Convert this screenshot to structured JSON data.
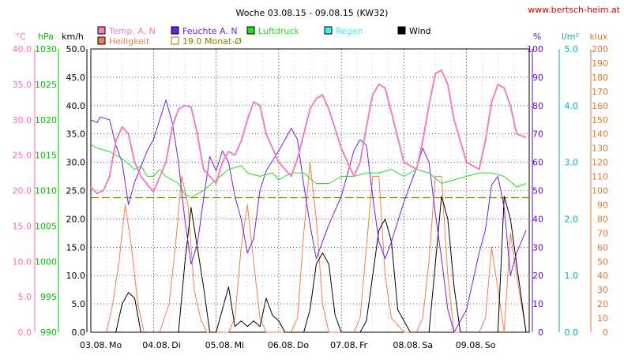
{
  "chart_data": {
    "type": "line",
    "title": "Woche 03.08.15 - 09.08.15 (KW32)",
    "site": "www.bertsch-heim.at",
    "x_ticks": [
      "03.08.",
      "04.08.",
      "05.08.",
      "06.08.",
      "07.08.",
      "08.08.",
      "09.08."
    ],
    "x_weekdays": [
      "Mo",
      "Di",
      "Mi",
      "Do",
      "Fr",
      "Sa",
      "So"
    ],
    "x_range_days": [
      0,
      7
    ],
    "grid": true,
    "axes": [
      {
        "unit": "°C",
        "min": 0,
        "max": 40,
        "ticks": [
          "0.0",
          "5.0",
          "10.0",
          "15.0",
          "20.0",
          "25.0",
          "30.0",
          "35.0",
          "40.0"
        ],
        "color": "#ff69b4"
      },
      {
        "unit": "hPa",
        "min": 990,
        "max": 1030,
        "ticks": [
          "990",
          "995",
          "1000",
          "1005",
          "1010",
          "1015",
          "1020",
          "1025",
          "1030"
        ],
        "color": "#00c000"
      },
      {
        "unit": "km/h",
        "min": 0,
        "max": 50,
        "ticks": [
          "0.0",
          "5.0",
          "10.0",
          "15.0",
          "20.0",
          "25.0",
          "30.0",
          "35.0",
          "40.0",
          "45.0",
          "50.0"
        ],
        "color": "#000000"
      },
      {
        "unit": "%",
        "min": 0,
        "max": 100,
        "ticks": [
          "0",
          "10",
          "20",
          "30",
          "40",
          "50",
          "60",
          "70",
          "80",
          "90",
          "100"
        ],
        "color": "#6a0dad"
      },
      {
        "unit": "l/m²",
        "min": 0,
        "max": 5,
        "ticks": [
          "0.0",
          "1.0",
          "2.0",
          "3.0",
          "4.0",
          "5.0"
        ],
        "color": "#00b0c0"
      },
      {
        "unit": "klux",
        "min": 0,
        "max": 200,
        "ticks": [
          "0",
          "10",
          "20",
          "30",
          "40",
          "50",
          "60",
          "70",
          "80",
          "90",
          "100",
          "110",
          "120",
          "130",
          "140",
          "150",
          "160",
          "170",
          "180",
          "190",
          "200"
        ],
        "color": "#e07830"
      }
    ],
    "legend": [
      {
        "label": "Temp. A. N",
        "color": "#f080c0",
        "kind": "fill"
      },
      {
        "label": "Feuchte A. N",
        "color": "#7020e0",
        "kind": "fill"
      },
      {
        "label": "Luftdruck",
        "color": "#20e020",
        "kind": "fill"
      },
      {
        "label": "Regen",
        "color": "#40f0f0",
        "kind": "fill"
      },
      {
        "label": "Wind",
        "color": "#000000",
        "kind": "fill"
      },
      {
        "label": "Helligkeit",
        "color": "#f08050",
        "kind": "fill"
      },
      {
        "label": "19.0 Monat-Ø",
        "color": "#808000",
        "kind": "outline"
      }
    ],
    "reference_line": {
      "label": "19.0 Monat-Ø",
      "axis": "°C",
      "value": 19.0,
      "color": "#808000"
    },
    "series": [
      {
        "name": "Temp. A. N",
        "axis": "°C",
        "color": "#f080c0",
        "width": 2,
        "x": [
          0,
          0.1,
          0.2,
          0.3,
          0.4,
          0.5,
          0.6,
          0.7,
          0.8,
          1.0,
          1.2,
          1.3,
          1.4,
          1.5,
          1.6,
          1.7,
          1.8,
          2.0,
          2.1,
          2.2,
          2.3,
          2.4,
          2.5,
          2.6,
          2.7,
          2.8,
          3.0,
          3.2,
          3.3,
          3.4,
          3.5,
          3.6,
          3.7,
          3.8,
          4.0,
          4.2,
          4.3,
          4.4,
          4.5,
          4.6,
          4.7,
          4.8,
          5.0,
          5.2,
          5.3,
          5.4,
          5.5,
          5.6,
          5.7,
          5.8,
          6.0,
          6.2,
          6.3,
          6.4,
          6.5,
          6.6,
          6.7,
          6.8,
          6.95
        ],
        "y": [
          20.5,
          19.6,
          20,
          22,
          27,
          29,
          28,
          24,
          22,
          19.8,
          24,
          29,
          31.5,
          32,
          31.8,
          28,
          23,
          21,
          24,
          25.5,
          25,
          27,
          30,
          32.5,
          32,
          28,
          24,
          22,
          24.5,
          28,
          31.5,
          33,
          33.5,
          31.5,
          26,
          22,
          24,
          29,
          33.5,
          35,
          34.5,
          31,
          24,
          23,
          27,
          32,
          36.5,
          37,
          35,
          30,
          24,
          23,
          27,
          32.5,
          35,
          34.5,
          32,
          28,
          27.5
        ]
      },
      {
        "name": "Luftdruck",
        "axis": "hPa",
        "color": "#20e020",
        "width": 1,
        "x": [
          0,
          0.1,
          0.3,
          0.4,
          0.5,
          0.7,
          0.8,
          0.9,
          1.0,
          1.1,
          1.2,
          1.4,
          1.5,
          1.6,
          1.8,
          2.0,
          2.2,
          2.4,
          2.5,
          2.7,
          2.9,
          3.0,
          3.2,
          3.4,
          3.6,
          3.8,
          4.0,
          4.2,
          4.4,
          4.6,
          4.8,
          5.0,
          5.2,
          5.4,
          5.6,
          5.8,
          6.0,
          6.2,
          6.4,
          6.6,
          6.8,
          6.95
        ],
        "y": [
          1016.5,
          1016,
          1015.5,
          1015,
          1014.5,
          1013,
          1013.5,
          1012,
          1012,
          1013,
          1012,
          1011,
          1009.5,
          1009,
          1010,
          1011.5,
          1013,
          1013.5,
          1012.5,
          1012,
          1012.5,
          1011.5,
          1012.5,
          1012.5,
          1011,
          1011,
          1012,
          1012,
          1012.5,
          1012.5,
          1013,
          1012,
          1013,
          1012.5,
          1011,
          1011.5,
          1012,
          1012.5,
          1012.5,
          1012,
          1010.5,
          1011
        ]
      },
      {
        "name": "Feuchte A. N",
        "axis": "%",
        "color": "#7020e0",
        "width": 1,
        "x": [
          0,
          0.1,
          0.15,
          0.3,
          0.4,
          0.5,
          0.6,
          0.7,
          0.9,
          1.0,
          1.2,
          1.3,
          1.4,
          1.5,
          1.6,
          1.7,
          1.8,
          1.9,
          2.0,
          2.1,
          2.2,
          2.3,
          2.4,
          2.5,
          2.6,
          2.7,
          2.8,
          3.0,
          3.2,
          3.3,
          3.4,
          3.5,
          3.6,
          3.7,
          3.8,
          4.0,
          4.2,
          4.3,
          4.4,
          4.5,
          4.6,
          4.7,
          4.8,
          5.0,
          5.2,
          5.3,
          5.4,
          5.5,
          5.6,
          5.7,
          5.8,
          6.0,
          6.2,
          6.3,
          6.4,
          6.5,
          6.6,
          6.7,
          6.8,
          6.95
        ],
        "y": [
          75,
          74,
          76,
          75,
          66,
          60,
          45,
          53,
          64,
          68,
          82,
          74,
          60,
          40,
          24,
          31,
          47,
          62,
          57,
          64,
          60,
          48,
          40,
          28,
          33,
          50,
          57,
          64,
          72,
          68,
          52,
          38,
          26,
          32,
          38,
          48,
          64,
          68,
          66,
          48,
          32,
          26,
          32,
          46,
          58,
          65,
          60,
          42,
          26,
          8,
          0,
          8,
          28,
          36,
          52,
          55,
          44,
          20,
          28,
          36
        ]
      },
      {
        "name": "Wind",
        "axis": "km/h",
        "color": "#000000",
        "width": 1,
        "x": [
          0,
          0.4,
          0.5,
          0.6,
          0.7,
          0.8,
          0.9,
          1.0,
          1.1,
          1.2,
          1.3,
          1.4,
          1.5,
          1.6,
          1.7,
          1.8,
          1.9,
          2.0,
          2.1,
          2.2,
          2.3,
          2.4,
          2.5,
          2.6,
          2.7,
          2.8,
          2.9,
          3.0,
          3.1,
          3.2,
          3.3,
          3.4,
          3.5,
          3.6,
          3.7,
          3.8,
          3.9,
          4.0,
          4.1,
          4.2,
          4.3,
          4.4,
          4.5,
          4.6,
          4.7,
          4.8,
          4.9,
          5.0,
          5.1,
          5.2,
          5.3,
          5.4,
          5.5,
          5.6,
          5.7,
          5.8,
          5.9,
          6.0,
          6.1,
          6.2,
          6.3,
          6.4,
          6.5,
          6.6,
          6.7,
          6.8,
          6.95
        ],
        "y": [
          0,
          0,
          5,
          7,
          6,
          0,
          0,
          0,
          0,
          0,
          0,
          0,
          12,
          22,
          15,
          8,
          0,
          0,
          4,
          8,
          1,
          2,
          1,
          2,
          1,
          6,
          3,
          2,
          0,
          0,
          0,
          0,
          4,
          12,
          14,
          12,
          3,
          0,
          0,
          0,
          0,
          2,
          10,
          18,
          20,
          16,
          4,
          2,
          0,
          0,
          0,
          0,
          12,
          24,
          20,
          8,
          0,
          0,
          0,
          0,
          0,
          0,
          0,
          24,
          20,
          12,
          0
        ]
      },
      {
        "name": "Helligkeit",
        "axis": "klux",
        "color": "#f08050",
        "width": 1,
        "x": [
          0,
          0.25,
          0.35,
          0.45,
          0.55,
          0.65,
          0.75,
          0.85,
          1.0,
          1.1,
          1.25,
          1.35,
          1.45,
          1.55,
          1.65,
          1.75,
          1.85,
          2.0,
          2.2,
          2.3,
          2.4,
          2.5,
          2.6,
          2.7,
          2.8,
          3.0,
          3.2,
          3.3,
          3.4,
          3.5,
          3.6,
          3.7,
          3.8,
          4.0,
          4.2,
          4.3,
          4.4,
          4.5,
          4.6,
          4.7,
          4.8,
          5.0,
          5.2,
          5.3,
          5.4,
          5.5,
          5.6,
          5.7,
          5.8,
          6.0,
          6.2,
          6.3,
          6.4,
          6.5,
          6.6,
          6.7,
          6.8,
          6.95
        ],
        "y": [
          0,
          0,
          20,
          50,
          90,
          60,
          20,
          0,
          0,
          0,
          20,
          60,
          110,
          90,
          30,
          10,
          0,
          0,
          0,
          10,
          60,
          90,
          50,
          10,
          0,
          0,
          0,
          10,
          70,
          120,
          80,
          20,
          0,
          0,
          0,
          10,
          60,
          110,
          110,
          40,
          10,
          0,
          0,
          10,
          50,
          110,
          110,
          40,
          0,
          0,
          0,
          10,
          60,
          30,
          0,
          70,
          40,
          0
        ]
      }
    ]
  }
}
